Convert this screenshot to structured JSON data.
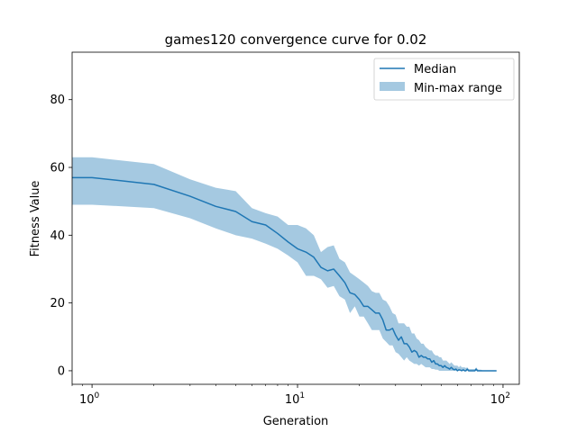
{
  "chart_data": {
    "type": "line",
    "title": "games120 convergence curve for 0.02",
    "xlabel": "Generation",
    "ylabel": "Fitness Value",
    "xscale": "log",
    "xlim": [
      0.8,
      120
    ],
    "ylim": [
      -4,
      94
    ],
    "xticks": [
      {
        "value": 1,
        "label": "10",
        "exp": "0"
      },
      {
        "value": 10,
        "label": "10",
        "exp": "1"
      },
      {
        "value": 100,
        "label": "10",
        "exp": "2"
      }
    ],
    "yticks": [
      0,
      20,
      40,
      60,
      80
    ],
    "grid": false,
    "legend_position": "top-right",
    "series": [
      {
        "name": "Median",
        "kind": "line",
        "color": "#1f77b4",
        "x": [
          0.8,
          1,
          2,
          3,
          4,
          5,
          6,
          7,
          8,
          9,
          10,
          11,
          12,
          13,
          14,
          15,
          16,
          17,
          18,
          19,
          20,
          21,
          22,
          23,
          24,
          25,
          26,
          27,
          28,
          29,
          30,
          31,
          32,
          33,
          34,
          35,
          36,
          37,
          38,
          39,
          40,
          41,
          42,
          43,
          44,
          45,
          46,
          47,
          48,
          49,
          50,
          51,
          52,
          53,
          54,
          55,
          56,
          57,
          58,
          59,
          60,
          61,
          62,
          63,
          64,
          65,
          66,
          67,
          68,
          69,
          70,
          71,
          72,
          73,
          74,
          75,
          76,
          77,
          78,
          79,
          80,
          81,
          82,
          83,
          84,
          85,
          86,
          87,
          88,
          89,
          90,
          91,
          92,
          93
        ],
        "values": [
          57,
          57,
          55,
          51.5,
          48.5,
          47,
          44,
          43,
          40.5,
          38,
          36,
          35,
          33.5,
          30.5,
          29.5,
          30,
          28,
          26,
          23,
          22.5,
          21,
          19,
          19,
          18,
          17,
          17,
          15,
          12,
          12,
          12.5,
          10.5,
          9,
          10,
          8,
          8,
          7,
          5.5,
          6,
          5.5,
          4,
          4.5,
          4,
          4,
          3.5,
          3.5,
          2.5,
          3,
          2,
          2,
          1.5,
          1.5,
          1,
          1.5,
          1,
          0.8,
          0.5,
          1,
          0.5,
          0.3,
          0.5,
          0,
          0.3,
          0.2,
          0,
          0.3,
          0,
          0,
          0.5,
          0,
          0,
          0,
          0,
          0,
          0,
          0.5,
          0,
          0,
          0,
          0,
          0,
          0,
          0,
          0,
          0,
          0,
          0,
          0,
          0,
          0,
          0,
          0,
          0,
          0,
          0
        ]
      },
      {
        "name": "Min-max range",
        "kind": "band",
        "color": "#1f77b4",
        "opacity": 0.4,
        "x": [
          0.8,
          1,
          2,
          3,
          4,
          5,
          6,
          7,
          8,
          9,
          10,
          11,
          12,
          13,
          14,
          15,
          16,
          17,
          18,
          19,
          20,
          21,
          22,
          23,
          24,
          25,
          26,
          27,
          28,
          29,
          30,
          31,
          32,
          33,
          34,
          35,
          36,
          37,
          38,
          39,
          40,
          41,
          42,
          43,
          44,
          45,
          46,
          47,
          48,
          49,
          50,
          51,
          52,
          53,
          54,
          55,
          56,
          57,
          58,
          59,
          60,
          61,
          62,
          63,
          64,
          65,
          66,
          67,
          68,
          69,
          70,
          71,
          72,
          73,
          74,
          75,
          76,
          77,
          78,
          79,
          80,
          81,
          82,
          83,
          84,
          85,
          86,
          87,
          88,
          89,
          90,
          91,
          92,
          93
        ],
        "upper": [
          63,
          63,
          61,
          56.5,
          54,
          53,
          48,
          46.5,
          45.5,
          43,
          43,
          42,
          40,
          35,
          36.5,
          37,
          33,
          32,
          29,
          28,
          27,
          26,
          25,
          23.5,
          23,
          23,
          21,
          20.5,
          19,
          17,
          16.5,
          14,
          14,
          14,
          13,
          13,
          11,
          11,
          9.5,
          9,
          8,
          8,
          7,
          6.5,
          6,
          6,
          5,
          4.5,
          4.5,
          4,
          4,
          3,
          3,
          3,
          2.5,
          2,
          2.5,
          2,
          1.5,
          1.5,
          1.5,
          1,
          1.5,
          1,
          1,
          1,
          0.8,
          1,
          0.5,
          0.5,
          0.5,
          0.5,
          0.5,
          0.5,
          1,
          0.5,
          0.3,
          0.3,
          0.3,
          0.2,
          0,
          0,
          0,
          0,
          0,
          0,
          0,
          0,
          0,
          0,
          0,
          0,
          0,
          0
        ],
        "lower": [
          49,
          49,
          48,
          45,
          42,
          40,
          39,
          37.5,
          36,
          34,
          32,
          28,
          28,
          27,
          24.5,
          25,
          22,
          21,
          17,
          19,
          16,
          16,
          14,
          12,
          12,
          12,
          9.5,
          8.5,
          7.5,
          7.5,
          5.5,
          5,
          4,
          3,
          4,
          3,
          2.5,
          2,
          2,
          1.5,
          2,
          1.5,
          1,
          1,
          1,
          0.5,
          0.5,
          0.3,
          0.3,
          0,
          0,
          0,
          0,
          0,
          0,
          0,
          0,
          0,
          0,
          0,
          0,
          0,
          0,
          0,
          0,
          0,
          0,
          0,
          0,
          0,
          0,
          0,
          0,
          0,
          0,
          0,
          0,
          0,
          0,
          0,
          0,
          0,
          0,
          0,
          0,
          0,
          0,
          0,
          0,
          0,
          0,
          0,
          0,
          0
        ]
      }
    ]
  }
}
